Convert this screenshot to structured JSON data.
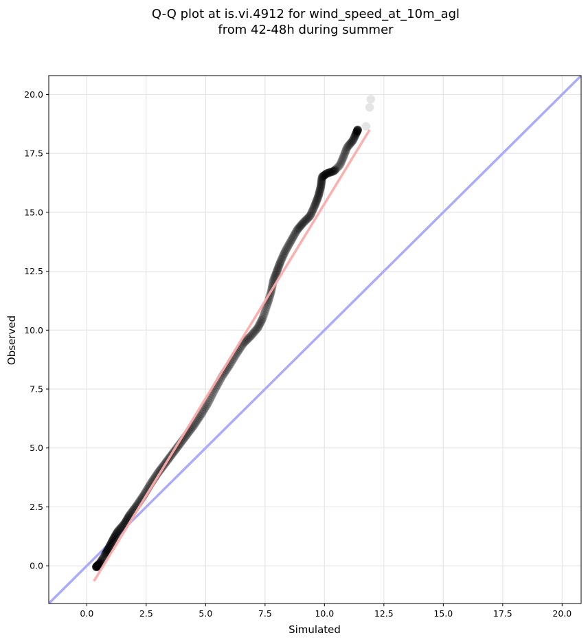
{
  "chart_data": {
    "type": "scatter",
    "title": [
      "Q-Q plot at is.vi.4912 for wind_speed_at_10m_agl",
      "from 42-48h during summer"
    ],
    "xlabel": "Simulated",
    "ylabel": "Observed",
    "xlim": [
      -1.6,
      20.8
    ],
    "ylim": [
      -1.6,
      20.8
    ],
    "xticks": [
      0.0,
      2.5,
      5.0,
      7.5,
      10.0,
      12.5,
      15.0,
      17.5,
      20.0
    ],
    "yticks": [
      0.0,
      2.5,
      5.0,
      7.5,
      10.0,
      12.5,
      15.0,
      17.5,
      20.0
    ],
    "tick_labels": [
      "0.0",
      "2.5",
      "5.0",
      "7.5",
      "10.0",
      "12.5",
      "15.0",
      "17.5",
      "20.0"
    ],
    "grid": true,
    "marker_color": "#000000",
    "identity_line": {
      "x": [
        -1.6,
        20.8
      ],
      "y": [
        -1.6,
        20.8
      ],
      "color": "#aaaaff"
    },
    "fit_line": {
      "x": [
        0.3,
        11.9
      ],
      "y": [
        -0.65,
        18.5
      ],
      "color": "#ffaaaa"
    },
    "quantile_curve": [
      [
        0.4,
        -0.05
      ],
      [
        0.55,
        0.1
      ],
      [
        0.7,
        0.35
      ],
      [
        0.9,
        0.7
      ],
      [
        1.1,
        1.1
      ],
      [
        1.3,
        1.45
      ],
      [
        1.6,
        1.8
      ],
      [
        1.8,
        2.15
      ],
      [
        2.1,
        2.55
      ],
      [
        2.4,
        3.0
      ],
      [
        2.7,
        3.5
      ],
      [
        3.0,
        3.95
      ],
      [
        3.3,
        4.35
      ],
      [
        3.6,
        4.75
      ],
      [
        3.9,
        5.15
      ],
      [
        4.2,
        5.55
      ],
      [
        4.5,
        5.95
      ],
      [
        4.8,
        6.4
      ],
      [
        5.1,
        6.9
      ],
      [
        5.4,
        7.5
      ],
      [
        5.7,
        8.05
      ],
      [
        6.0,
        8.5
      ],
      [
        6.3,
        9.0
      ],
      [
        6.6,
        9.45
      ],
      [
        6.9,
        9.75
      ],
      [
        7.2,
        10.1
      ],
      [
        7.4,
        10.5
      ],
      [
        7.6,
        11.1
      ],
      [
        7.75,
        11.6
      ],
      [
        7.85,
        12.1
      ],
      [
        8.0,
        12.5
      ],
      [
        8.15,
        12.9
      ],
      [
        8.35,
        13.35
      ],
      [
        8.6,
        13.8
      ],
      [
        8.85,
        14.25
      ],
      [
        9.1,
        14.55
      ],
      [
        9.4,
        14.85
      ],
      [
        9.6,
        15.3
      ],
      [
        9.75,
        15.7
      ],
      [
        9.85,
        16.1
      ],
      [
        9.9,
        16.5
      ],
      [
        10.1,
        16.65
      ],
      [
        10.4,
        16.75
      ],
      [
        10.65,
        17.0
      ],
      [
        10.8,
        17.35
      ],
      [
        10.95,
        17.75
      ],
      [
        11.2,
        18.05
      ],
      [
        11.4,
        18.5
      ]
    ],
    "outlier_points": [
      [
        0.4,
        0.0
      ],
      [
        0.5,
        0.1
      ],
      [
        11.75,
        18.65
      ],
      [
        11.9,
        19.45
      ],
      [
        11.95,
        19.8
      ]
    ]
  }
}
